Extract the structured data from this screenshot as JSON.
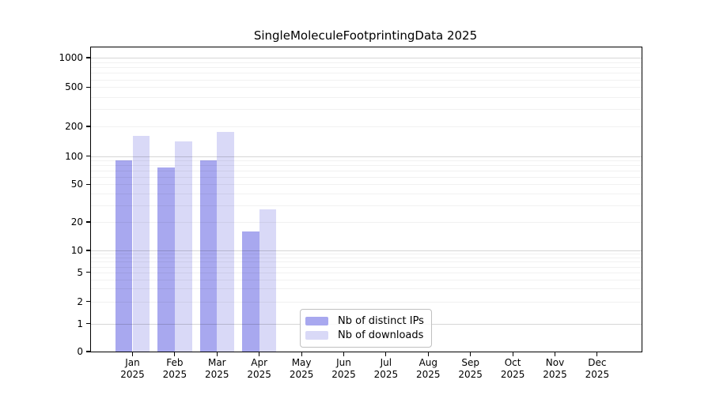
{
  "chart_data": {
    "type": "bar",
    "title": "SingleMoleculeFootprintingData 2025",
    "x_month_labels": [
      "Jan",
      "Feb",
      "Mar",
      "Apr",
      "May",
      "Jun",
      "Jul",
      "Aug",
      "Sep",
      "Oct",
      "Nov",
      "Dec"
    ],
    "x_year_label": "2025",
    "series": [
      {
        "name": "Nb of distinct IPs",
        "color": "#a8a8ef",
        "values": [
          90,
          76,
          90,
          16,
          0,
          0,
          0,
          0,
          0,
          0,
          0,
          0
        ]
      },
      {
        "name": "Nb of downloads",
        "color": "#d9d9f7",
        "values": [
          160,
          140,
          175,
          27,
          0,
          0,
          0,
          0,
          0,
          0,
          0,
          0
        ]
      }
    ],
    "ytick_labels": [
      "1000",
      "500",
      "200",
      "100",
      "50",
      "20",
      "10",
      "5",
      "2",
      "1",
      "0"
    ],
    "ytick_values": [
      1000,
      500,
      200,
      100,
      50,
      20,
      10,
      5,
      2,
      1,
      0
    ],
    "yscale": "log with zero baseline",
    "ylim": [
      0,
      1200
    ],
    "grid": "horizontal major and minor gridlines, drawn over bars",
    "legend_position": "inside-bottom-center"
  },
  "colors": {
    "grid_major": "rgba(0,0,0,0.16)",
    "grid_minor": "rgba(0,0,0,0.055)",
    "spine": "#000000",
    "text": "#000000",
    "legend_border": "#c0c0c0",
    "background": "#ffffff"
  }
}
